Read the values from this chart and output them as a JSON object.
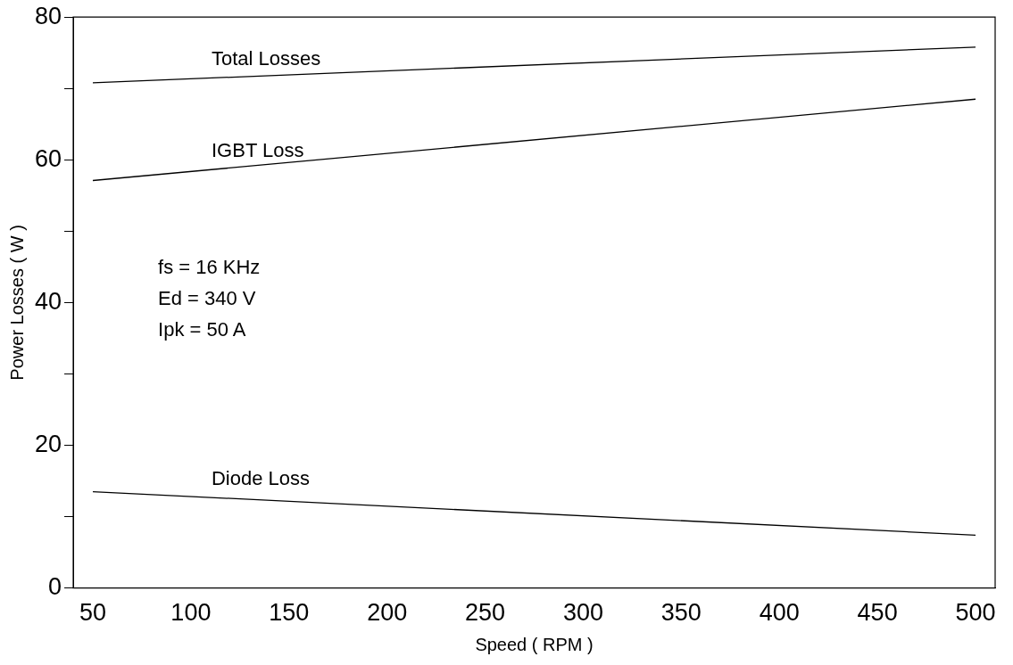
{
  "chart_data": {
    "type": "line",
    "xlabel": "Speed ( RPM )",
    "ylabel": "Power Losses ( W )",
    "x": [
      50,
      500
    ],
    "series": [
      {
        "name": "Total Losses",
        "color": "#000000",
        "values": [
          70.8,
          75.8
        ]
      },
      {
        "name": "IGBT Loss",
        "color": "#000000",
        "values": [
          57.1,
          68.5
        ]
      },
      {
        "name": "Diode Loss",
        "color": "#000000",
        "values": [
          13.5,
          7.4
        ]
      }
    ],
    "xlim": [
      40,
      510
    ],
    "xticks": [
      50,
      100,
      150,
      200,
      250,
      300,
      350,
      400,
      450,
      500
    ],
    "ylim": [
      0,
      80
    ],
    "yticks": [
      0,
      {
        "value": 10,
        "label": null
      },
      20,
      {
        "value": 30,
        "label": null
      },
      40,
      {
        "value": 50,
        "label": null
      },
      60,
      {
        "value": 70,
        "label": null
      },
      80
    ],
    "annotations": [
      "fs = 16 KHz",
      "Ed = 340 V",
      "Ipk = 50 A"
    ],
    "grid": false,
    "legend": false,
    "marker": "none",
    "line_style": "solid"
  }
}
